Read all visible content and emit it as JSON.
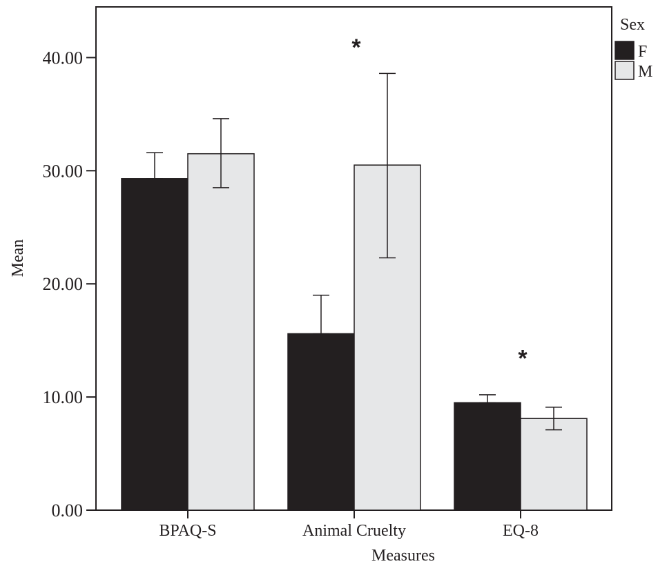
{
  "chart_data": {
    "type": "bar",
    "title": "",
    "xlabel": "Measures",
    "ylabel": "Mean",
    "ylim": [
      0,
      44
    ],
    "yticks": [
      0,
      10,
      20,
      30,
      40
    ],
    "ytick_labels": [
      "0.00",
      "10.00",
      "20.00",
      "30.00",
      "40.00"
    ],
    "categories": [
      "BPAQ-S",
      "Animal Cruelty",
      "EQ-8"
    ],
    "series": [
      {
        "name": "F",
        "color": "#231f20",
        "values": [
          29.3,
          15.6,
          9.5
        ],
        "err_low": [
          29.3,
          15.6,
          9.5
        ],
        "err_high": [
          31.6,
          19.0,
          10.2
        ]
      },
      {
        "name": "M",
        "color": "#e6e7e8",
        "values": [
          31.5,
          30.5,
          8.1
        ],
        "err_low": [
          28.5,
          22.3,
          7.1
        ],
        "err_high": [
          34.6,
          38.6,
          9.1
        ]
      }
    ],
    "legend": {
      "title": "Sex",
      "placement": "top-right outside"
    },
    "annotations": [
      {
        "text": "*",
        "category": "Animal Cruelty",
        "y": 41.8
      },
      {
        "text": "*",
        "category": "EQ-8",
        "y": 14.3
      }
    ],
    "grid": false
  }
}
